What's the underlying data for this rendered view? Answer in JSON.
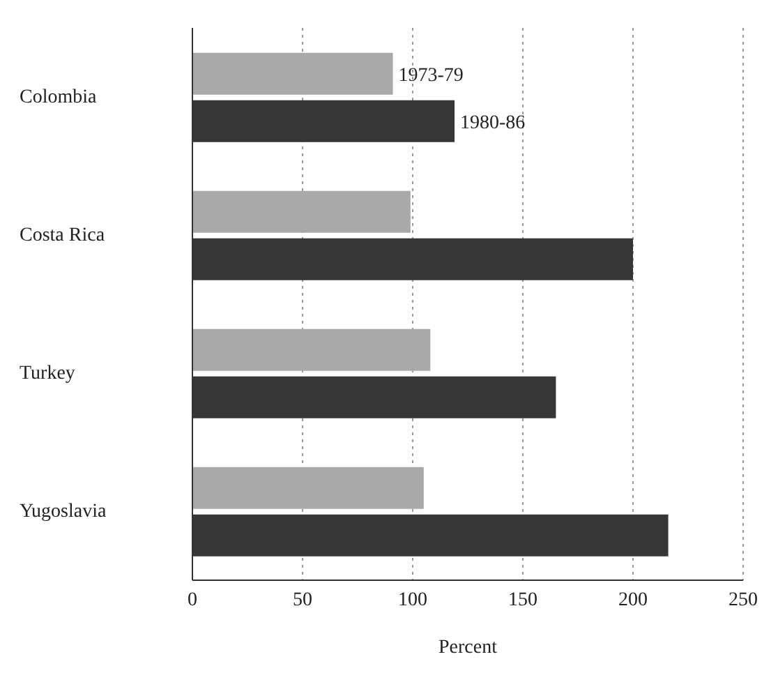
{
  "chart_data": {
    "type": "bar",
    "orientation": "horizontal",
    "xlabel": "Percent",
    "categories": [
      "Colombia",
      "Costa Rica",
      "Turkey",
      "Yugoslavia"
    ],
    "series": [
      {
        "name": "1973-79",
        "color": "#a9a9a9",
        "values": [
          91,
          99,
          108,
          105
        ]
      },
      {
        "name": "1980-86",
        "color": "#363636",
        "values": [
          119,
          200,
          165,
          216
        ]
      }
    ],
    "xlim": [
      0,
      250
    ],
    "xticks": [
      0,
      50,
      100,
      150,
      200,
      250
    ],
    "grid": "x",
    "legend": false
  }
}
